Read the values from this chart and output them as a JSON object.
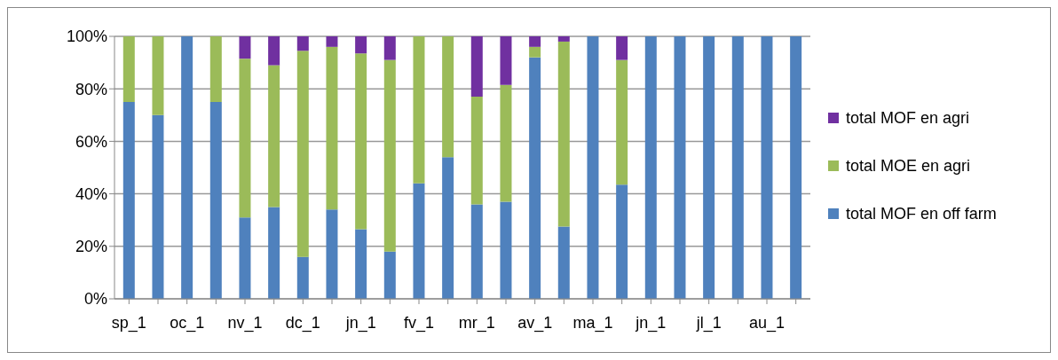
{
  "chart_data": {
    "type": "bar",
    "stacked": true,
    "categories": [
      "sp_1",
      null,
      "oc_1",
      null,
      "nv_1",
      null,
      "dc_1",
      null,
      "jn_1",
      null,
      "fv_1",
      null,
      "mr_1",
      null,
      "av_1",
      null,
      "ma_1",
      null,
      "jn_1",
      null,
      "jl_1",
      null,
      "au_1",
      null
    ],
    "series": [
      {
        "name": "total MOF en off farm",
        "color": "#4f81bd",
        "values": [
          75,
          70,
          100,
          75,
          31,
          35,
          16,
          34,
          26.5,
          18,
          44,
          54,
          36,
          37,
          92,
          27.5,
          100,
          43.5,
          100,
          100,
          100,
          100,
          100,
          100
        ]
      },
      {
        "name": "total MOE en agri",
        "color": "#9bbb59",
        "values": [
          25,
          30,
          0,
          25,
          60.5,
          54,
          78.5,
          62,
          67,
          73,
          56,
          46,
          41,
          44.5,
          4,
          70.5,
          0,
          47.5,
          0,
          0,
          0,
          0,
          0,
          0
        ]
      },
      {
        "name": "total MOF en agri",
        "color": "#7030a0",
        "values": [
          0,
          0,
          0,
          0,
          8.5,
          11,
          5.5,
          4,
          6.5,
          9,
          0,
          0,
          23,
          18.5,
          4,
          2,
          0,
          9,
          0,
          0,
          0,
          0,
          0,
          0
        ]
      }
    ],
    "ylim": [
      0,
      100
    ],
    "yticks": [
      {
        "value": 0,
        "label": "0%"
      },
      {
        "value": 20,
        "label": "20%"
      },
      {
        "value": 40,
        "label": "40%"
      },
      {
        "value": 60,
        "label": "60%"
      },
      {
        "value": 80,
        "label": "80%"
      },
      {
        "value": 100,
        "label": "100%"
      }
    ],
    "grid": "y",
    "legend": "right"
  }
}
